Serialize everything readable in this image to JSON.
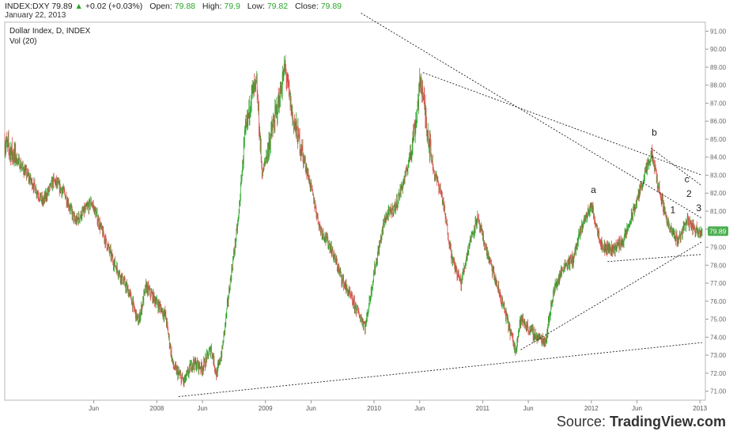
{
  "header": {
    "symbol": "INDEX:DXY",
    "last": "79.89",
    "change": "+0.02 (+0.03%)",
    "open_label": "Open:",
    "open": "79.88",
    "high_label": "High:",
    "high": "79.9",
    "low_label": "Low:",
    "low": "79.82",
    "close_label": "Close:",
    "close": "79.89",
    "date": "January 22, 2013"
  },
  "legend": {
    "title": "Dollar Index, D, INDEX",
    "volume": "Vol (20)"
  },
  "price_tag": "79.89",
  "source": {
    "prefix": "Source: ",
    "brand": "TradingView.com"
  },
  "colors": {
    "up": "#2aa52a",
    "down": "#d9534f",
    "tag": "#4caf50",
    "axis": "#888888"
  },
  "chart_data": {
    "type": "candlestick",
    "title": "Dollar Index, D, INDEX",
    "x_range": [
      2006.6,
      2013.05
    ],
    "y_range": [
      70.5,
      91.5
    ],
    "y_ticks": [
      "91.00",
      "90.00",
      "89.00",
      "88.00",
      "87.00",
      "86.00",
      "85.00",
      "84.00",
      "83.00",
      "82.00",
      "81.00",
      "80.00",
      "79.00",
      "78.00",
      "77.00",
      "76.00",
      "75.00",
      "74.00",
      "73.00",
      "72.00",
      "71.00"
    ],
    "x_ticks": [
      {
        "label": "Jun",
        "t": 2007.42
      },
      {
        "label": "2008",
        "t": 2008.0
      },
      {
        "label": "Jun",
        "t": 2008.42
      },
      {
        "label": "2009",
        "t": 2009.0
      },
      {
        "label": "Jun",
        "t": 2009.42
      },
      {
        "label": "2010",
        "t": 2010.0
      },
      {
        "label": "Jun",
        "t": 2010.42
      },
      {
        "label": "2011",
        "t": 2011.0
      },
      {
        "label": "Jun",
        "t": 2011.42
      },
      {
        "label": "2012",
        "t": 2012.0
      },
      {
        "label": "Jun",
        "t": 2012.42
      },
      {
        "label": "2013",
        "t": 2013.0
      }
    ],
    "path_points": [
      [
        2006.6,
        84.8
      ],
      [
        2006.7,
        84.0
      ],
      [
        2006.85,
        82.6
      ],
      [
        2006.95,
        81.5
      ],
      [
        2007.05,
        82.7
      ],
      [
        2007.15,
        82.0
      ],
      [
        2007.25,
        80.4
      ],
      [
        2007.4,
        81.5
      ],
      [
        2007.5,
        79.8
      ],
      [
        2007.6,
        78.2
      ],
      [
        2007.75,
        76.4
      ],
      [
        2007.83,
        74.8
      ],
      [
        2007.9,
        76.8
      ],
      [
        2007.97,
        76.2
      ],
      [
        2008.08,
        75.2
      ],
      [
        2008.15,
        72.4
      ],
      [
        2008.25,
        71.5
      ],
      [
        2008.33,
        72.6
      ],
      [
        2008.42,
        72.3
      ],
      [
        2008.5,
        73.4
      ],
      [
        2008.55,
        71.9
      ],
      [
        2008.6,
        73.2
      ],
      [
        2008.68,
        77.3
      ],
      [
        2008.75,
        80.5
      ],
      [
        2008.8,
        84.5
      ],
      [
        2008.87,
        87.5
      ],
      [
        2008.92,
        87.9
      ],
      [
        2008.97,
        83.0
      ],
      [
        2009.05,
        85.2
      ],
      [
        2009.12,
        87.0
      ],
      [
        2009.18,
        89.0
      ],
      [
        2009.25,
        86.2
      ],
      [
        2009.33,
        84.5
      ],
      [
        2009.42,
        82.3
      ],
      [
        2009.5,
        80.1
      ],
      [
        2009.6,
        79.0
      ],
      [
        2009.7,
        77.3
      ],
      [
        2009.8,
        76.0
      ],
      [
        2009.92,
        74.6
      ],
      [
        2010.0,
        77.6
      ],
      [
        2010.1,
        80.6
      ],
      [
        2010.2,
        81.3
      ],
      [
        2010.3,
        83.2
      ],
      [
        2010.38,
        85.8
      ],
      [
        2010.43,
        88.4
      ],
      [
        2010.48,
        86.0
      ],
      [
        2010.55,
        83.2
      ],
      [
        2010.62,
        82.0
      ],
      [
        2010.72,
        78.3
      ],
      [
        2010.8,
        77.0
      ],
      [
        2010.88,
        79.3
      ],
      [
        2010.95,
        80.6
      ],
      [
        2011.02,
        79.1
      ],
      [
        2011.1,
        77.5
      ],
      [
        2011.2,
        75.5
      ],
      [
        2011.3,
        73.3
      ],
      [
        2011.35,
        75.0
      ],
      [
        2011.42,
        74.5
      ],
      [
        2011.5,
        74.0
      ],
      [
        2011.58,
        73.8
      ],
      [
        2011.65,
        76.5
      ],
      [
        2011.75,
        78.0
      ],
      [
        2011.83,
        78.3
      ],
      [
        2011.92,
        80.3
      ],
      [
        2012.0,
        81.3
      ],
      [
        2012.1,
        79.0
      ],
      [
        2012.2,
        78.9
      ],
      [
        2012.3,
        79.4
      ],
      [
        2012.4,
        81.2
      ],
      [
        2012.5,
        83.2
      ],
      [
        2012.56,
        84.1
      ],
      [
        2012.62,
        82.3
      ],
      [
        2012.72,
        80.0
      ],
      [
        2012.8,
        79.4
      ],
      [
        2012.88,
        80.5
      ],
      [
        2012.95,
        80.0
      ],
      [
        2013.02,
        79.89
      ]
    ],
    "trendlines": [
      {
        "from": [
          2008.2,
          70.7
        ],
        "to": [
          2013.02,
          73.7
        ]
      },
      {
        "from": [
          2011.35,
          73.3
        ],
        "to": [
          2013.02,
          79.3
        ]
      },
      {
        "from": [
          2012.15,
          78.2
        ],
        "to": [
          2013.02,
          78.6
        ]
      },
      {
        "from": [
          2010.45,
          88.7
        ],
        "to": [
          2013.02,
          83.0
        ]
      },
      {
        "from": [
          2009.88,
          92.0
        ],
        "to": [
          2013.02,
          80.6
        ]
      },
      {
        "from": [
          2012.55,
          84.5
        ],
        "to": [
          2013.02,
          82.4
        ]
      }
    ],
    "annotations": [
      {
        "label": "a",
        "t": 2012.02,
        "v": 82.0
      },
      {
        "label": "b",
        "t": 2012.58,
        "v": 85.2
      },
      {
        "label": "c",
        "t": 2012.88,
        "v": 82.6
      },
      {
        "label": "2",
        "t": 2012.9,
        "v": 81.8
      },
      {
        "label": "1",
        "t": 2012.75,
        "v": 80.9
      },
      {
        "label": "3",
        "t": 2012.99,
        "v": 81.0
      }
    ],
    "last_value": 79.89
  }
}
